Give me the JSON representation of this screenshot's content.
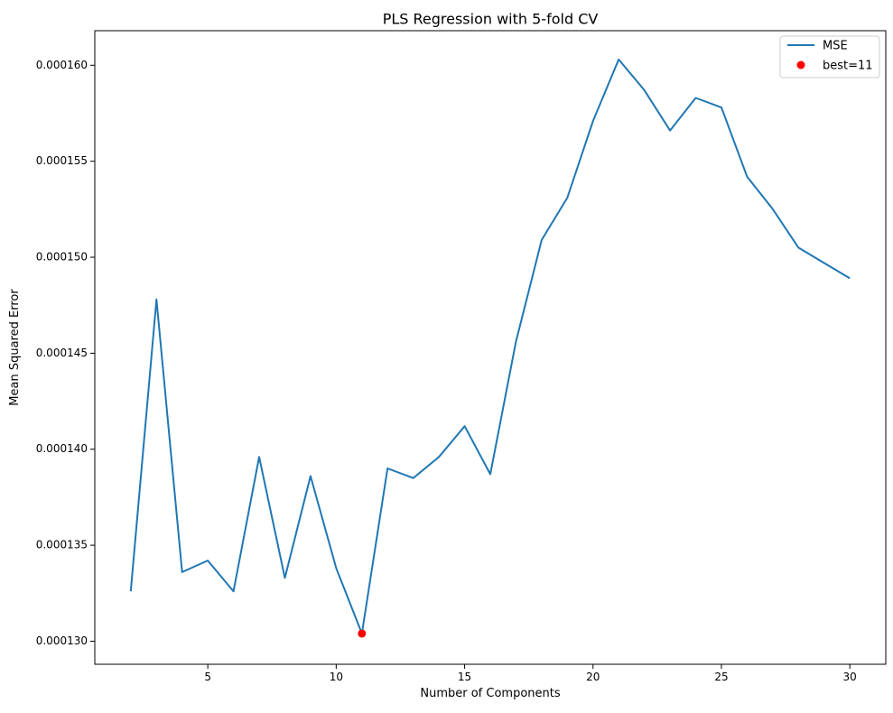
{
  "chart_data": {
    "type": "line",
    "title": "PLS Regression with 5-fold CV",
    "xlabel": "Number of Components",
    "ylabel": "Mean Squared Error",
    "xlim": [
      0.6,
      31.4
    ],
    "ylim": [
      0.0001288,
      0.0001618
    ],
    "x_ticks": [
      5,
      10,
      15,
      20,
      25,
      30
    ],
    "y_ticks": [
      0.00013,
      0.000135,
      0.00014,
      0.000145,
      0.00015,
      0.000155,
      0.00016
    ],
    "x_tick_labels": [
      "5",
      "10",
      "15",
      "20",
      "25",
      "30"
    ],
    "y_tick_labels": [
      "0.000130",
      "0.000135",
      "0.000140",
      "0.000145",
      "0.000150",
      "0.000155",
      "0.000160"
    ],
    "grid": false,
    "legend_position": "top-right",
    "series": [
      {
        "name": "MSE",
        "color": "#1f77b4",
        "x": [
          2,
          3,
          4,
          5,
          6,
          7,
          8,
          9,
          10,
          11,
          12,
          13,
          14,
          15,
          16,
          17,
          18,
          19,
          20,
          21,
          22,
          23,
          24,
          25,
          26,
          27,
          28,
          29,
          30
        ],
        "y": [
          0.0001326,
          0.0001478,
          0.0001336,
          0.0001342,
          0.0001326,
          0.0001396,
          0.0001333,
          0.0001386,
          0.0001338,
          0.0001304,
          0.000139,
          0.0001385,
          0.0001396,
          0.0001412,
          0.0001387,
          0.0001456,
          0.0001509,
          0.0001531,
          0.0001571,
          0.0001603,
          0.0001587,
          0.0001566,
          0.0001583,
          0.0001578,
          0.0001542,
          0.0001525,
          0.0001505,
          0.0001497,
          0.0001489
        ]
      }
    ],
    "markers": [
      {
        "name": "best=11",
        "color": "#ff0000",
        "x": 11,
        "y": 0.0001304
      }
    ]
  }
}
